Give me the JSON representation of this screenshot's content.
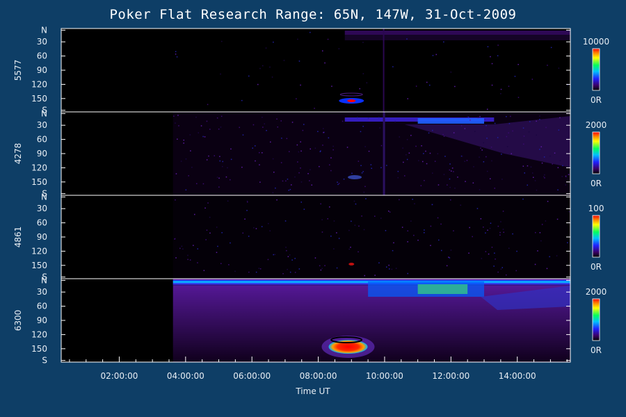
{
  "chart_data": {
    "type": "heatmap",
    "title": "Poker Flat Research Range: 65N, 147W, 31-Oct-2009",
    "xlabel": "Time UT",
    "x_ticks": [
      "02:00:00",
      "04:00:00",
      "06:00:00",
      "08:00:00",
      "10:00:00",
      "12:00:00",
      "14:00:00"
    ],
    "x_range_hours": [
      0.25,
      15.6
    ],
    "y_ticks": [
      "N",
      "30",
      "60",
      "90",
      "120",
      "150",
      "S"
    ],
    "panels": [
      {
        "name": "5577",
        "colorbar_max": "10000",
        "colorbar_min": "0R"
      },
      {
        "name": "4278",
        "colorbar_max": "2000",
        "colorbar_min": "0R"
      },
      {
        "name": "4861",
        "colorbar_max": "100",
        "colorbar_min": "0R"
      },
      {
        "name": "6300",
        "colorbar_max": "2000",
        "colorbar_min": "0R"
      }
    ],
    "colorscale": [
      "#000000",
      "#2a0040",
      "#6a00a0",
      "#0000ff",
      "#00a0ff",
      "#00ff80",
      "#ffff00",
      "#ff8000",
      "#ff0000"
    ],
    "grid": false,
    "legend": "right colorbars"
  }
}
